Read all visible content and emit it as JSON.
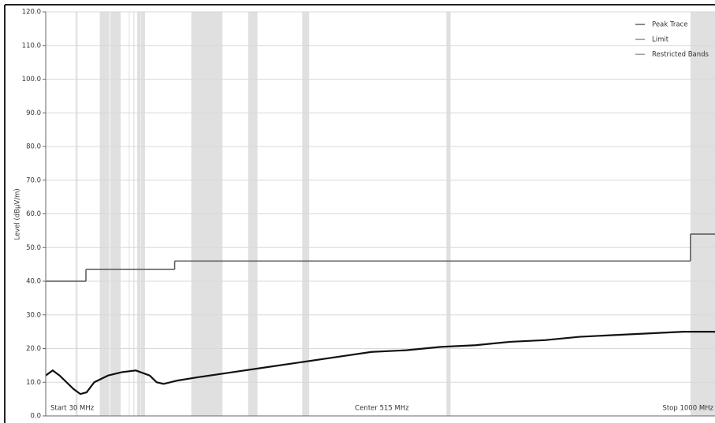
{
  "chart_data": {
    "type": "line",
    "y_label": "Level (dBµV/m)",
    "xlim": [
      30,
      1000
    ],
    "ylim": [
      0,
      120
    ],
    "yticks": [
      {
        "value": 0,
        "label": "0.0"
      },
      {
        "value": 10,
        "label": "10.0"
      },
      {
        "value": 20,
        "label": "20.0"
      },
      {
        "value": 30,
        "label": "30.0"
      },
      {
        "value": 40,
        "label": "40.0"
      },
      {
        "value": 50,
        "label": "50.0"
      },
      {
        "value": 60,
        "label": "60.0"
      },
      {
        "value": 70,
        "label": "70.0"
      },
      {
        "value": 80,
        "label": "80.0"
      },
      {
        "value": 90,
        "label": "90.0"
      },
      {
        "value": 100,
        "label": "100.0"
      },
      {
        "value": 110,
        "label": "110.0"
      },
      {
        "value": 120,
        "label": "120.0"
      }
    ],
    "xticks": [
      {
        "value": 30,
        "label": "Start 30 MHz"
      },
      {
        "value": 515,
        "label": "Center 515 MHz"
      },
      {
        "value": 1000,
        "label": "Stop 1000 MHz"
      }
    ],
    "grid": true,
    "legend": "top-right",
    "series": [
      {
        "name": "Peak Trace",
        "color": "#111111",
        "x": [
          30,
          40,
          50,
          60,
          70,
          80,
          89,
          100,
          120,
          140,
          160,
          180,
          190,
          200,
          220,
          250,
          300,
          350,
          400,
          450,
          500,
          550,
          600,
          650,
          700,
          750,
          800,
          850,
          900,
          950,
          1000
        ],
        "values": [
          12,
          13.5,
          12,
          10,
          8,
          6.5,
          7,
          10,
          12,
          13,
          13.5,
          12,
          10,
          9.5,
          10.5,
          11.5,
          13,
          14.5,
          16,
          17.5,
          19,
          19.5,
          20.5,
          21,
          22,
          22.5,
          23.5,
          24,
          24.5,
          25,
          25
        ]
      },
      {
        "name": "Limit",
        "color": "#555555",
        "x": [
          30,
          88,
          216,
          960
        ],
        "values": [
          40,
          43.5,
          46,
          54
        ]
      }
    ],
    "bands": {
      "name": "Restricted Bands",
      "color": "#e0e0e0",
      "ranges": [
        [
          73,
          74.6
        ],
        [
          74.8,
          75.2
        ],
        [
          108,
          121.94
        ],
        [
          123,
          138
        ],
        [
          149.9,
          150.05
        ],
        [
          156.52,
          156.53
        ],
        [
          156.7,
          156.9
        ],
        [
          162.01,
          167.17
        ],
        [
          167.72,
          173.2
        ],
        [
          240,
          285
        ],
        [
          322,
          335.4
        ],
        [
          399.9,
          410
        ],
        [
          608,
          614
        ],
        [
          960,
          1240
        ]
      ]
    }
  }
}
